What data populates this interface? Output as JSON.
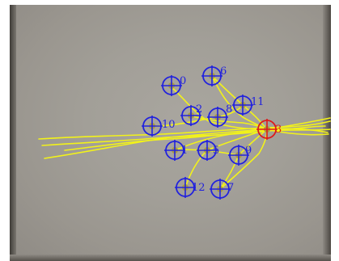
{
  "colors": {
    "marker_blue": "#2222dd",
    "marker_red": "#dd1a1a",
    "track_yellow": "#f2f21a",
    "center_dot": "#a89a40"
  },
  "markers": [
    {
      "id": "marker-0",
      "label": "0",
      "kind": "tracked"
    },
    {
      "id": "marker-6",
      "label": "6",
      "kind": "tracked"
    },
    {
      "id": "marker-2",
      "label": "2",
      "kind": "tracked"
    },
    {
      "id": "marker-8",
      "label": "8",
      "kind": "tracked"
    },
    {
      "id": "marker-11",
      "label": "11",
      "kind": "tracked"
    },
    {
      "id": "marker-10",
      "label": "10",
      "kind": "tracked"
    },
    {
      "id": "marker-1",
      "label": "1",
      "kind": "tracked"
    },
    {
      "id": "marker-5",
      "label": "5",
      "kind": "tracked"
    },
    {
      "id": "marker-9",
      "label": "9",
      "kind": "tracked"
    },
    {
      "id": "marker-12",
      "label": "12",
      "kind": "tracked"
    },
    {
      "id": "marker-7",
      "label": "7",
      "kind": "tracked"
    },
    {
      "id": "marker-3",
      "label": "3",
      "kind": "target"
    }
  ]
}
